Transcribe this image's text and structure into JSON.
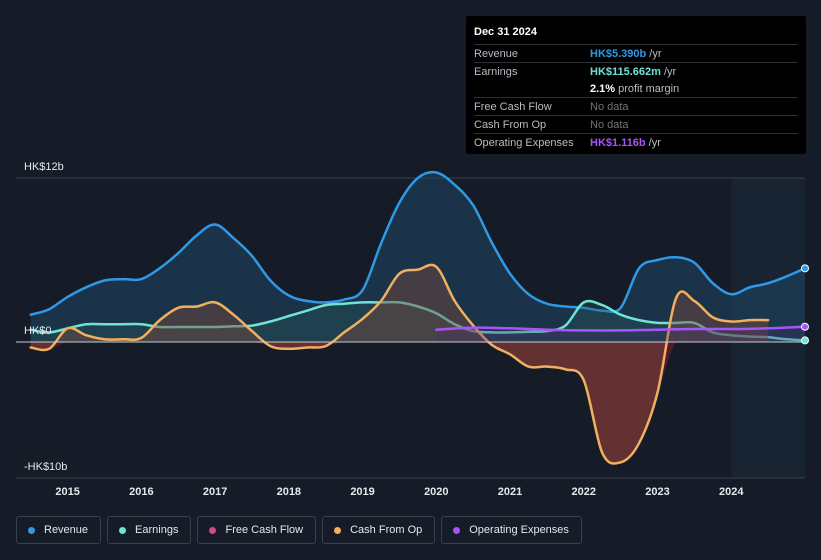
{
  "tooltip": {
    "date": "Dec 31 2024",
    "rows": [
      {
        "label": "Revenue",
        "value": "HK$5.390b",
        "unit": "/yr",
        "color": "#2e9ae6"
      },
      {
        "label": "Earnings",
        "value": "HK$115.662m",
        "unit": "/yr",
        "color": "#6fe3d4"
      },
      {
        "label": "",
        "value": "2.1%",
        "unit": "profit margin",
        "color": "#ffffff"
      },
      {
        "label": "Free Cash Flow",
        "value": "No data",
        "unit": "",
        "color": "#70757d"
      },
      {
        "label": "Cash From Op",
        "value": "No data",
        "unit": "",
        "color": "#70757d"
      },
      {
        "label": "Operating Expenses",
        "value": "HK$1.116b",
        "unit": "/yr",
        "color": "#a855f7"
      }
    ]
  },
  "legend": [
    {
      "label": "Revenue",
      "color": "#2e9ae6"
    },
    {
      "label": "Earnings",
      "color": "#6fe3d4"
    },
    {
      "label": "Free Cash Flow",
      "color": "#d6488a"
    },
    {
      "label": "Cash From Op",
      "color": "#f0b060"
    },
    {
      "label": "Operating Expenses",
      "color": "#a855f7"
    }
  ],
  "chart_data": {
    "type": "area",
    "y_unit_label_top": "HK$12b",
    "y_unit_label_zero": "HK$0",
    "y_unit_label_bottom": "-HK$10b",
    "ylim": [
      -10,
      12
    ],
    "xlim": [
      2014.3,
      2025.0
    ],
    "x_ticks": [
      "2015",
      "2016",
      "2017",
      "2018",
      "2019",
      "2020",
      "2021",
      "2022",
      "2023",
      "2024"
    ],
    "x_tick_values": [
      2015,
      2016,
      2017,
      2018,
      2019,
      2020,
      2021,
      2022,
      2023,
      2024
    ],
    "forecast_start": 2024.0,
    "series": [
      {
        "name": "Revenue",
        "color": "#2e9ae6",
        "x": [
          2014.5,
          2014.75,
          2015.0,
          2015.25,
          2015.5,
          2015.75,
          2016.0,
          2016.25,
          2016.5,
          2016.75,
          2017.0,
          2017.25,
          2017.5,
          2017.75,
          2018.0,
          2018.25,
          2018.5,
          2018.75,
          2019.0,
          2019.25,
          2019.5,
          2019.75,
          2020.0,
          2020.25,
          2020.5,
          2020.75,
          2021.0,
          2021.25,
          2021.5,
          2021.75,
          2022.0,
          2022.25,
          2022.5,
          2022.75,
          2023.0,
          2023.25,
          2023.5,
          2023.75,
          2024.0,
          2024.25,
          2024.5,
          2024.75,
          2025.0
        ],
        "y": [
          2.0,
          2.4,
          3.3,
          4.0,
          4.5,
          4.6,
          4.6,
          5.4,
          6.5,
          7.8,
          8.6,
          7.6,
          6.3,
          4.5,
          3.4,
          3.0,
          2.9,
          3.1,
          3.8,
          7.2,
          10.2,
          12.0,
          12.4,
          11.5,
          10.0,
          7.3,
          5.0,
          3.5,
          2.8,
          2.6,
          2.5,
          2.3,
          2.5,
          5.4,
          6.0,
          6.2,
          5.8,
          4.3,
          3.5,
          4.0,
          4.3,
          4.8,
          5.39
        ]
      },
      {
        "name": "Earnings",
        "color": "#6fe3d4",
        "x": [
          2014.5,
          2014.75,
          2015.0,
          2015.25,
          2015.5,
          2015.75,
          2016.0,
          2016.25,
          2016.5,
          2016.75,
          2017.0,
          2017.25,
          2017.5,
          2017.75,
          2018.0,
          2018.25,
          2018.5,
          2018.75,
          2019.0,
          2019.25,
          2019.5,
          2019.75,
          2020.0,
          2020.25,
          2020.5,
          2020.75,
          2021.0,
          2021.25,
          2021.5,
          2021.75,
          2022.0,
          2022.25,
          2022.5,
          2022.75,
          2023.0,
          2023.25,
          2023.5,
          2023.75,
          2024.0,
          2024.25,
          2024.5,
          2024.75,
          2025.0
        ],
        "y": [
          0.9,
          0.7,
          1.0,
          1.3,
          1.3,
          1.3,
          1.3,
          1.1,
          1.1,
          1.1,
          1.1,
          1.15,
          1.2,
          1.5,
          1.9,
          2.3,
          2.7,
          2.8,
          2.9,
          2.9,
          2.9,
          2.6,
          2.1,
          1.3,
          0.8,
          0.7,
          0.7,
          0.75,
          0.8,
          1.2,
          2.9,
          2.7,
          2.0,
          1.6,
          1.4,
          1.4,
          1.4,
          0.7,
          0.5,
          0.4,
          0.35,
          0.2,
          0.116
        ]
      },
      {
        "name": "Cash From Op",
        "color": "#f0b060",
        "x": [
          2014.5,
          2014.75,
          2015.0,
          2015.25,
          2015.5,
          2015.75,
          2016.0,
          2016.25,
          2016.5,
          2016.75,
          2017.0,
          2017.25,
          2017.5,
          2017.75,
          2018.0,
          2018.25,
          2018.5,
          2018.75,
          2019.0,
          2019.25,
          2019.5,
          2019.75,
          2020.0,
          2020.25,
          2020.5,
          2020.75,
          2021.0,
          2021.25,
          2021.5,
          2021.75,
          2022.0,
          2022.25,
          2022.5,
          2022.75,
          2023.0,
          2023.25,
          2023.5,
          2023.75,
          2024.0,
          2024.25,
          2024.5
        ],
        "y": [
          -0.4,
          -0.5,
          1.0,
          0.5,
          0.2,
          0.2,
          0.3,
          1.6,
          2.5,
          2.6,
          2.9,
          2.0,
          0.8,
          -0.3,
          -0.5,
          -0.4,
          -0.3,
          0.7,
          1.7,
          3.0,
          5.0,
          5.3,
          5.5,
          3.0,
          1.2,
          -0.2,
          -0.9,
          -1.8,
          -1.8,
          -2.0,
          -2.8,
          -8.1,
          -8.8,
          -7.4,
          -3.7,
          3.2,
          3.0,
          1.8,
          1.5,
          1.6,
          1.6
        ]
      },
      {
        "name": "Operating Expenses",
        "color": "#a855f7",
        "x": [
          2020.0,
          2020.5,
          2021.0,
          2021.5,
          2022.0,
          2022.5,
          2023.0,
          2023.5,
          2024.0,
          2024.5,
          2025.0
        ],
        "y": [
          0.9,
          1.05,
          1.0,
          0.9,
          0.85,
          0.85,
          0.9,
          0.95,
          0.95,
          1.0,
          1.116
        ]
      }
    ]
  }
}
